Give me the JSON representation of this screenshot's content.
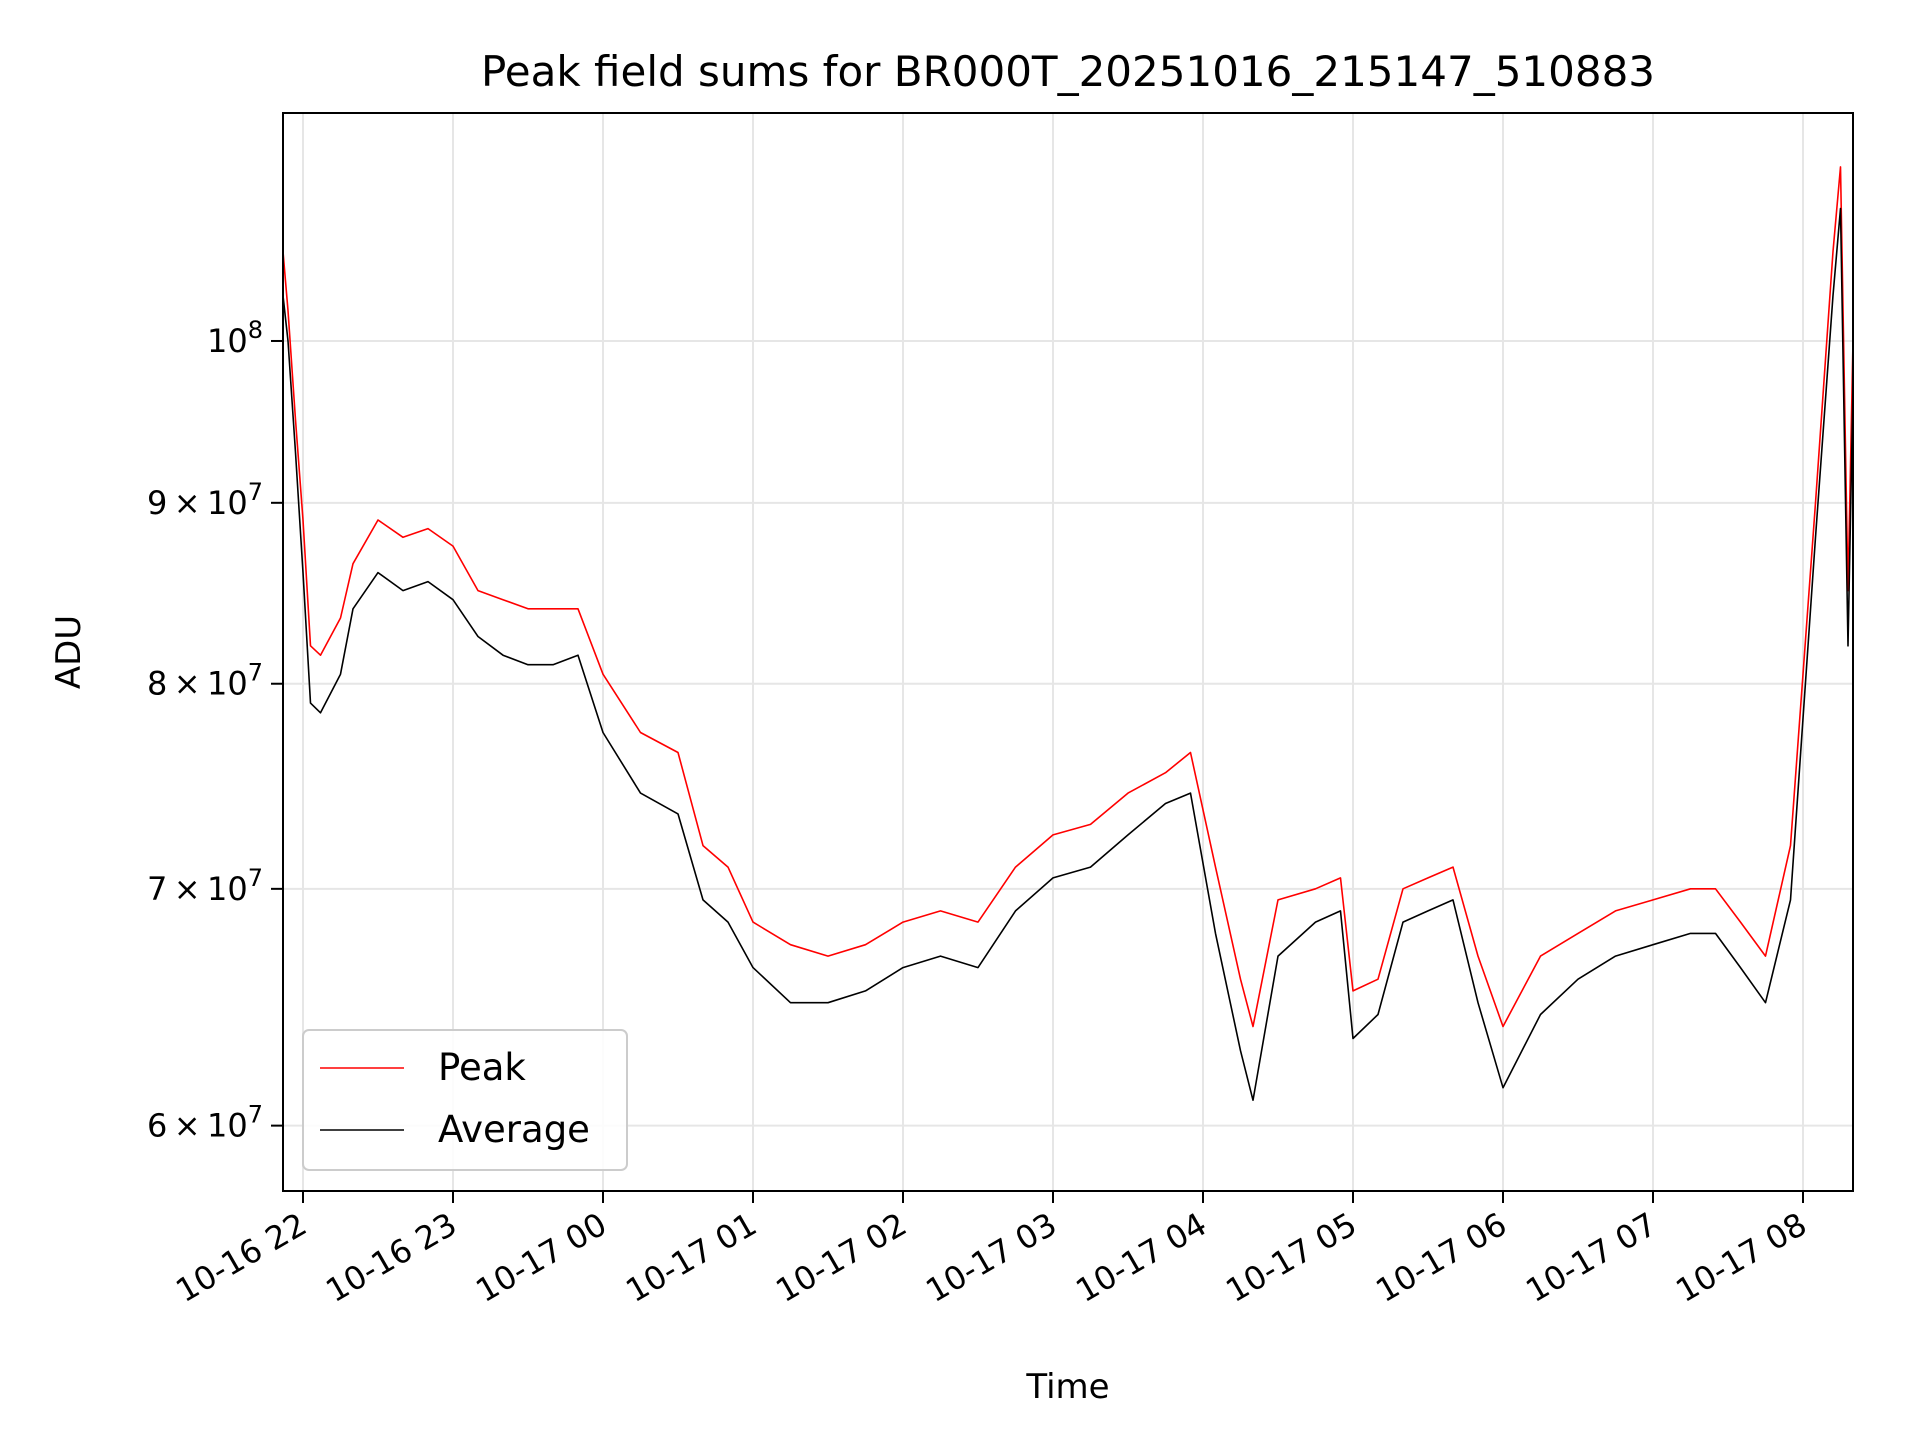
{
  "chart_data": {
    "type": "line",
    "title": "Peak field sums for BR000T_20251016_215147_510883",
    "xlabel": "Time",
    "ylabel": "ADU",
    "yscale": "log",
    "grid": true,
    "legend_placement": "lower-left",
    "xlim": [
      "2025-10-16 21:52",
      "2025-10-17 08:20"
    ],
    "ylim": [
      57500000,
      116000000
    ],
    "x_ticks": [
      {
        "value": "2025-10-16 22:00",
        "label": "10-16 22"
      },
      {
        "value": "2025-10-16 23:00",
        "label": "10-16 23"
      },
      {
        "value": "2025-10-17 00:00",
        "label": "10-17 00"
      },
      {
        "value": "2025-10-17 01:00",
        "label": "10-17 01"
      },
      {
        "value": "2025-10-17 02:00",
        "label": "10-17 02"
      },
      {
        "value": "2025-10-17 03:00",
        "label": "10-17 03"
      },
      {
        "value": "2025-10-17 04:00",
        "label": "10-17 04"
      },
      {
        "value": "2025-10-17 05:00",
        "label": "10-17 05"
      },
      {
        "value": "2025-10-17 06:00",
        "label": "10-17 06"
      },
      {
        "value": "2025-10-17 07:00",
        "label": "10-17 07"
      },
      {
        "value": "2025-10-17 08:00",
        "label": "10-17 08"
      }
    ],
    "y_ticks": [
      {
        "value": 60000000,
        "mantissa": "6",
        "times": "×",
        "base": "10",
        "exp": "7"
      },
      {
        "value": 70000000,
        "mantissa": "7",
        "times": "×",
        "base": "10",
        "exp": "7"
      },
      {
        "value": 80000000,
        "mantissa": "8",
        "times": "×",
        "base": "10",
        "exp": "7"
      },
      {
        "value": 90000000,
        "mantissa": "9",
        "times": "×",
        "base": "10",
        "exp": "7"
      },
      {
        "value": 100000000,
        "mantissa": "",
        "times": "",
        "base": "10",
        "exp": "8"
      }
    ],
    "series": [
      {
        "name": "Peak",
        "color": "#ff0000",
        "x": [
          "2025-10-16 21:52",
          "2025-10-16 21:54",
          "2025-10-16 21:57",
          "2025-10-16 22:00",
          "2025-10-16 22:03",
          "2025-10-16 22:07",
          "2025-10-16 22:15",
          "2025-10-16 22:20",
          "2025-10-16 22:30",
          "2025-10-16 22:40",
          "2025-10-16 22:50",
          "2025-10-16 23:00",
          "2025-10-16 23:10",
          "2025-10-16 23:20",
          "2025-10-16 23:30",
          "2025-10-16 23:40",
          "2025-10-16 23:50",
          "2025-10-17 00:00",
          "2025-10-17 00:15",
          "2025-10-17 00:30",
          "2025-10-17 00:40",
          "2025-10-17 00:50",
          "2025-10-17 01:00",
          "2025-10-17 01:15",
          "2025-10-17 01:30",
          "2025-10-17 01:45",
          "2025-10-17 02:00",
          "2025-10-17 02:15",
          "2025-10-17 02:30",
          "2025-10-17 02:45",
          "2025-10-17 03:00",
          "2025-10-17 03:15",
          "2025-10-17 03:30",
          "2025-10-17 03:45",
          "2025-10-17 03:55",
          "2025-10-17 04:05",
          "2025-10-17 04:15",
          "2025-10-17 04:20",
          "2025-10-17 04:30",
          "2025-10-17 04:45",
          "2025-10-17 04:55",
          "2025-10-17 05:00",
          "2025-10-17 05:10",
          "2025-10-17 05:20",
          "2025-10-17 05:30",
          "2025-10-17 05:40",
          "2025-10-17 05:50",
          "2025-10-17 06:00",
          "2025-10-17 06:15",
          "2025-10-17 06:30",
          "2025-10-17 06:45",
          "2025-10-17 07:00",
          "2025-10-17 07:15",
          "2025-10-17 07:25",
          "2025-10-17 07:35",
          "2025-10-17 07:45",
          "2025-10-17 07:55",
          "2025-10-17 08:05",
          "2025-10-17 08:12",
          "2025-10-17 08:15",
          "2025-10-17 08:18",
          "2025-10-17 08:20"
        ],
        "y": [
          106000000,
          102000000,
          95000000,
          89000000,
          82000000,
          81500000,
          83500000,
          86500000,
          89000000,
          88000000,
          88500000,
          87500000,
          85000000,
          84500000,
          84000000,
          84000000,
          84000000,
          80500000,
          77500000,
          76500000,
          72000000,
          71000000,
          68500000,
          67500000,
          67000000,
          67500000,
          68500000,
          69000000,
          68500000,
          71000000,
          72500000,
          73000000,
          74500000,
          75500000,
          76500000,
          71000000,
          66000000,
          64000000,
          69500000,
          70000000,
          70500000,
          65500000,
          66000000,
          70000000,
          70500000,
          71000000,
          67000000,
          64000000,
          67000000,
          68000000,
          69000000,
          69500000,
          70000000,
          70000000,
          68500000,
          67000000,
          72000000,
          90000000,
          106000000,
          112000000,
          85000000,
          100000000
        ]
      },
      {
        "name": "Average",
        "color": "#000000",
        "x": [
          "2025-10-16 21:52",
          "2025-10-16 21:54",
          "2025-10-16 21:57",
          "2025-10-16 22:00",
          "2025-10-16 22:03",
          "2025-10-16 22:07",
          "2025-10-16 22:15",
          "2025-10-16 22:20",
          "2025-10-16 22:30",
          "2025-10-16 22:40",
          "2025-10-16 22:50",
          "2025-10-16 23:00",
          "2025-10-16 23:10",
          "2025-10-16 23:20",
          "2025-10-16 23:30",
          "2025-10-16 23:40",
          "2025-10-16 23:50",
          "2025-10-17 00:00",
          "2025-10-17 00:15",
          "2025-10-17 00:30",
          "2025-10-17 00:40",
          "2025-10-17 00:50",
          "2025-10-17 01:00",
          "2025-10-17 01:15",
          "2025-10-17 01:30",
          "2025-10-17 01:45",
          "2025-10-17 02:00",
          "2025-10-17 02:15",
          "2025-10-17 02:30",
          "2025-10-17 02:45",
          "2025-10-17 03:00",
          "2025-10-17 03:15",
          "2025-10-17 03:30",
          "2025-10-17 03:45",
          "2025-10-17 03:55",
          "2025-10-17 04:05",
          "2025-10-17 04:15",
          "2025-10-17 04:20",
          "2025-10-17 04:30",
          "2025-10-17 04:45",
          "2025-10-17 04:55",
          "2025-10-17 05:00",
          "2025-10-17 05:10",
          "2025-10-17 05:20",
          "2025-10-17 05:30",
          "2025-10-17 05:40",
          "2025-10-17 05:50",
          "2025-10-17 06:00",
          "2025-10-17 06:15",
          "2025-10-17 06:30",
          "2025-10-17 06:45",
          "2025-10-17 07:00",
          "2025-10-17 07:15",
          "2025-10-17 07:25",
          "2025-10-17 07:35",
          "2025-10-17 07:45",
          "2025-10-17 07:55",
          "2025-10-17 08:05",
          "2025-10-17 08:12",
          "2025-10-17 08:15",
          "2025-10-17 08:18",
          "2025-10-17 08:20"
        ],
        "y": [
          103000000,
          100000000,
          93000000,
          86000000,
          79000000,
          78500000,
          80500000,
          84000000,
          86000000,
          85000000,
          85500000,
          84500000,
          82500000,
          81500000,
          81000000,
          81000000,
          81500000,
          77500000,
          74500000,
          73500000,
          69500000,
          68500000,
          66500000,
          65000000,
          65000000,
          65500000,
          66500000,
          67000000,
          66500000,
          69000000,
          70500000,
          71000000,
          72500000,
          74000000,
          74500000,
          68000000,
          63000000,
          61000000,
          67000000,
          68500000,
          69000000,
          63500000,
          64500000,
          68500000,
          69000000,
          69500000,
          65000000,
          61500000,
          64500000,
          66000000,
          67000000,
          67500000,
          68000000,
          68000000,
          66500000,
          65000000,
          69500000,
          88000000,
          103000000,
          109000000,
          82000000,
          97000000
        ]
      }
    ]
  }
}
